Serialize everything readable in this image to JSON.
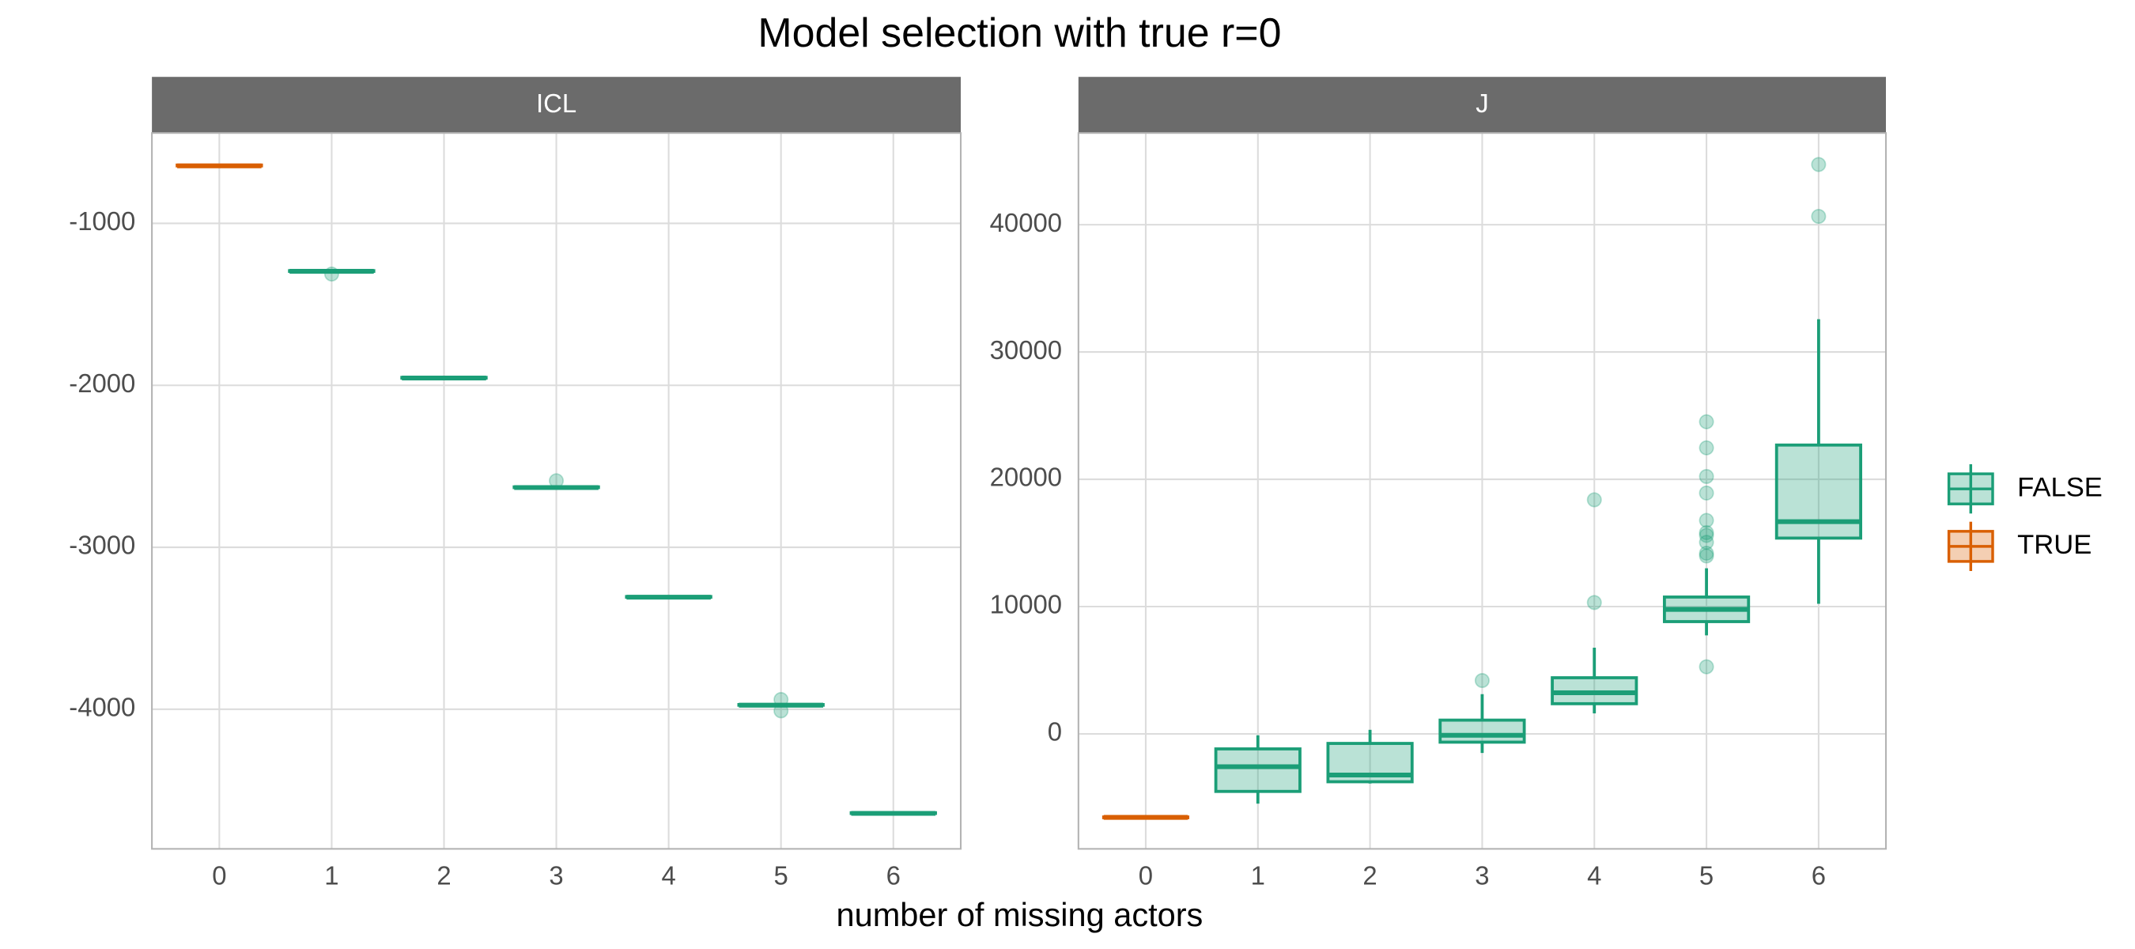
{
  "title": "Model selection with true r=0",
  "x_label": "number of missing actors",
  "legend": {
    "position": "right",
    "series": [
      {
        "name": "FALSE",
        "color": "#1b9e77"
      },
      {
        "name": "TRUE",
        "color": "#d95f02"
      }
    ]
  },
  "chart_data": [
    {
      "type": "box",
      "panel": "ICL",
      "categories": [
        "0",
        "1",
        "2",
        "3",
        "4",
        "5",
        "6"
      ],
      "ylim": [
        -4862,
        -442
      ],
      "yticks": [
        -4000,
        -3000,
        -2000,
        -1000
      ],
      "grid": true,
      "boxes": [
        {
          "group": "TRUE",
          "min": -650,
          "q1": -645,
          "median": -645,
          "q3": -640,
          "max": -635,
          "outliers": []
        },
        {
          "group": "FALSE",
          "min": -1300,
          "q1": -1296,
          "median": -1296,
          "q3": -1292,
          "max": -1288,
          "outliers": [
            -1313
          ]
        },
        {
          "group": "FALSE",
          "min": -1960,
          "q1": -1955,
          "median": -1955,
          "q3": -1951,
          "max": -1947,
          "outliers": []
        },
        {
          "group": "FALSE",
          "min": -2636,
          "q1": -2631,
          "median": -2631,
          "q3": -2627,
          "max": -2622,
          "outliers": [
            -2589
          ]
        },
        {
          "group": "FALSE",
          "min": -3313,
          "q1": -3308,
          "median": -3308,
          "q3": -3304,
          "max": -3300,
          "outliers": []
        },
        {
          "group": "FALSE",
          "min": -3980,
          "q1": -3975,
          "median": -3975,
          "q3": -3971,
          "max": -3967,
          "outliers": [
            -3940,
            -4010
          ]
        },
        {
          "group": "FALSE",
          "min": -4648,
          "q1": -4643,
          "median": -4643,
          "q3": -4639,
          "max": -4635,
          "outliers": []
        }
      ]
    },
    {
      "type": "box",
      "panel": "J",
      "categories": [
        "0",
        "1",
        "2",
        "3",
        "4",
        "5",
        "6"
      ],
      "ylim": [
        -9032,
        47204
      ],
      "yticks": [
        0,
        10000,
        20000,
        30000,
        40000
      ],
      "grid": true,
      "boxes": [
        {
          "group": "TRUE",
          "min": -6600,
          "q1": -6560,
          "median": -6560,
          "q3": -6530,
          "max": -6500,
          "outliers": []
        },
        {
          "group": "FALSE",
          "min": -5480,
          "q1": -4520,
          "median": -2580,
          "q3": -1180,
          "max": -110,
          "outliers": []
        },
        {
          "group": "FALSE",
          "min": -3900,
          "q1": -3760,
          "median": -3230,
          "q3": -750,
          "max": 320,
          "outliers": []
        },
        {
          "group": "FALSE",
          "min": -1500,
          "q1": -650,
          "median": -110,
          "q3": 1080,
          "max": 3120,
          "outliers": [
            4190
          ]
        },
        {
          "group": "FALSE",
          "min": 1610,
          "q1": 2370,
          "median": 3230,
          "q3": 4410,
          "max": 6770,
          "outliers": [
            10320,
            18390
          ]
        },
        {
          "group": "FALSE",
          "min": 7740,
          "q1": 8820,
          "median": 9780,
          "q3": 10750,
          "max": 13010,
          "outliers": [
            5270,
            13980,
            14190,
            15050,
            15590,
            15810,
            16770,
            18920,
            20220,
            22470,
            24520
          ]
        },
        {
          "group": "FALSE",
          "min": 10220,
          "q1": 15380,
          "median": 16670,
          "q3": 22690,
          "max": 32580,
          "outliers": [
            40650,
            44730
          ]
        }
      ]
    }
  ]
}
